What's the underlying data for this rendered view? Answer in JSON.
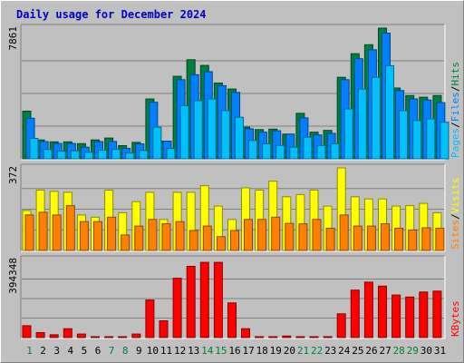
{
  "chart_data": {
    "type": "bar",
    "title": "Daily usage for December 2024",
    "categories": [
      "1",
      "2",
      "3",
      "4",
      "5",
      "6",
      "7",
      "8",
      "9",
      "10",
      "11",
      "12",
      "13",
      "14",
      "15",
      "16",
      "17",
      "18",
      "19",
      "20",
      "21",
      "22",
      "23",
      "24",
      "25",
      "26",
      "27",
      "28",
      "29",
      "30",
      "31"
    ],
    "weekend_days": [
      "1",
      "7",
      "8",
      "14",
      "15",
      "21",
      "22",
      "28",
      "29"
    ],
    "panels": [
      {
        "id": "hits-files-pages",
        "ymax_label": "7861",
        "ylim": [
          0,
          7861
        ],
        "legend": [
          "Pages",
          "/",
          "Files",
          "/",
          "Hits"
        ],
        "series": [
          {
            "name": "Hits",
            "color": "#008040",
            "values": [
              2867,
              1136,
              1022,
              1022,
              910,
              1136,
              1250,
              790,
              990,
              3600,
              1066,
              4960,
              5960,
              5620,
              4560,
              4200,
              1906,
              1760,
              1786,
              1486,
              2736,
              1606,
              1706,
              4900,
              6320,
              6860,
              7861,
              4260,
              3806,
              3706,
              3806
            ]
          },
          {
            "name": "Files",
            "color": "#0080ff",
            "values": [
              2440,
              1036,
              922,
              922,
              700,
              1036,
              1040,
              630,
              900,
              3400,
              1066,
              4760,
              5060,
              5240,
              4400,
              3996,
              1806,
              1606,
              1686,
              1486,
              2466,
              1436,
              1526,
              4760,
              6020,
              6560,
              7560,
              4106,
              3606,
              3536,
              3380
            ]
          },
          {
            "name": "Pages",
            "color": "#00c0ff",
            "values": [
              1230,
              560,
              460,
              480,
              400,
              520,
              560,
              350,
              500,
              1900,
              620,
              3200,
              3500,
              3600,
              2900,
              2500,
              1100,
              900,
              800,
              700,
              1300,
              800,
              900,
              3000,
              4200,
              4900,
              5600,
              2900,
              2300,
              2400,
              2200
            ]
          }
        ]
      },
      {
        "id": "visits-sites",
        "ymax_label": "372",
        "ylim": [
          0,
          372
        ],
        "legend": [
          "Sites",
          "/",
          "Visits"
        ],
        "series": [
          {
            "name": "Visits",
            "color": "#ffff00",
            "values": [
              180,
              272,
              266,
              262,
              160,
              150,
              272,
              170,
              220,
              262,
              140,
              262,
              262,
              292,
              200,
              140,
              282,
              272,
              312,
              242,
              252,
              272,
              200,
              372,
              242,
              232,
              232,
              200,
              202,
              212,
              170
            ]
          },
          {
            "name": "Sites",
            "color": "#ff8000",
            "values": [
              160,
              172,
              160,
              202,
              130,
              130,
              150,
              70,
              110,
              140,
              120,
              130,
              90,
              110,
              62,
              90,
              140,
              140,
              150,
              122,
              120,
              140,
              100,
              160,
              110,
              110,
              120,
              100,
              92,
              102,
              100
            ]
          }
        ]
      },
      {
        "id": "kbytes",
        "ymax_label": "394348",
        "ylim": [
          0,
          394348
        ],
        "legend": [
          "KBytes"
        ],
        "series": [
          {
            "name": "KBytes",
            "color": "#ff0000",
            "values": [
              60000,
              25000,
              14000,
              45000,
              18000,
              4000,
              4000,
              4000,
              18000,
              190000,
              85000,
              300000,
              360000,
              380000,
              380000,
              175000,
              45000,
              4000,
              4000,
              8000,
              4000,
              4000,
              4000,
              120000,
              240000,
              280000,
              260000,
              215000,
              205000,
              230000,
              235000
            ]
          }
        ]
      }
    ]
  }
}
